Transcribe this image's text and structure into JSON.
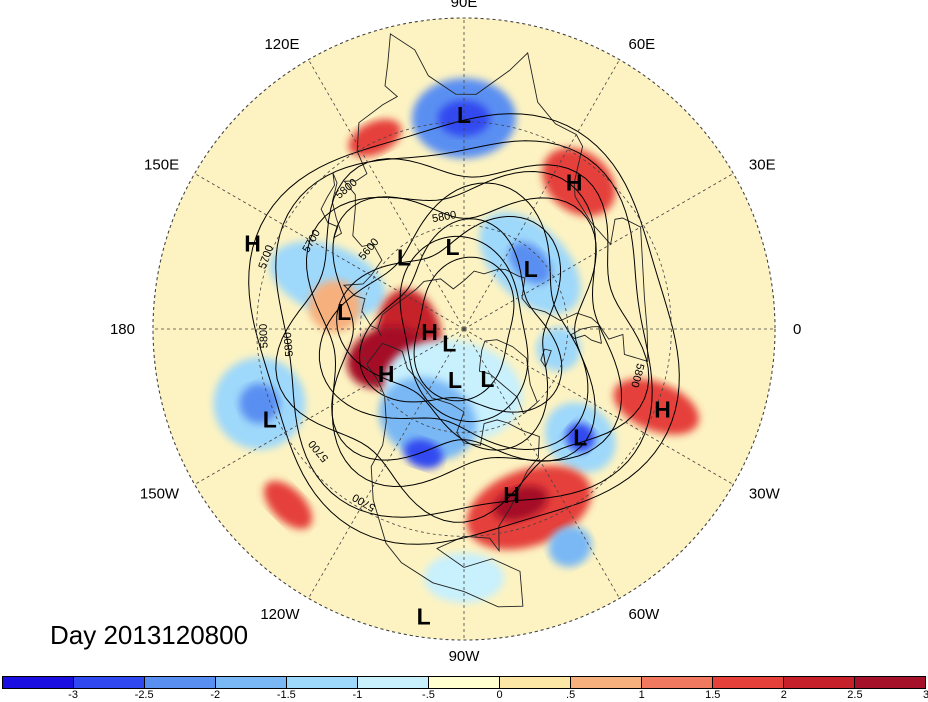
{
  "title": "Day 2013120800",
  "longitude_labels": [
    {
      "text": "90E",
      "deg": 90
    },
    {
      "text": "60E",
      "deg": 60
    },
    {
      "text": "30E",
      "deg": 30
    },
    {
      "text": "0",
      "deg": 0
    },
    {
      "text": "30W",
      "deg": -30
    },
    {
      "text": "60W",
      "deg": -60
    },
    {
      "text": "90W",
      "deg": -90
    },
    {
      "text": "120W",
      "deg": -120
    },
    {
      "text": "150W",
      "deg": -150
    },
    {
      "text": "180",
      "deg": 180
    },
    {
      "text": "150E",
      "deg": 150
    },
    {
      "text": "120E",
      "deg": 120
    }
  ],
  "pressure_centers": [
    {
      "type": "L",
      "label": "L",
      "lon": 90,
      "lat": 28
    },
    {
      "type": "H",
      "label": "H",
      "lon": 53,
      "lat": 37
    },
    {
      "type": "H",
      "label": "H",
      "lon": 158,
      "lat": 24
    },
    {
      "type": "L",
      "label": "L",
      "lon": 98,
      "lat": 66
    },
    {
      "type": "L",
      "label": "L",
      "lon": 130,
      "lat": 63
    },
    {
      "type": "L",
      "label": "L",
      "lon": 42,
      "lat": 64
    },
    {
      "type": "H",
      "label": "H",
      "lon": -175,
      "lat": 80
    },
    {
      "type": "L",
      "label": "L",
      "lon": -135,
      "lat": 84
    },
    {
      "type": "L",
      "label": "L",
      "lon": 172,
      "lat": 55
    },
    {
      "type": "H",
      "label": "H",
      "lon": -150,
      "lat": 64
    },
    {
      "type": "L",
      "label": "L",
      "lon": -100,
      "lat": 75
    },
    {
      "type": "L",
      "label": "L",
      "lon": -65,
      "lat": 74
    },
    {
      "type": "L",
      "label": "L",
      "lon": -155,
      "lat": 28
    },
    {
      "type": "L",
      "label": "L",
      "lon": -43,
      "lat": 44
    },
    {
      "type": "H",
      "label": "H",
      "lon": -22,
      "lat": 28
    },
    {
      "type": "H",
      "label": "H",
      "lon": -74,
      "lat": 40
    },
    {
      "type": "L",
      "label": "L",
      "lon": -98,
      "lat": 6
    }
  ],
  "contour_labels": [
    "5700",
    "5800",
    "5800",
    "5800",
    "5700",
    "5800",
    "5700",
    "5700",
    "5600",
    "5800"
  ],
  "anomaly_blobs": [
    {
      "lon": 90,
      "lat": 29,
      "rx": 52,
      "ry": 40,
      "level": -2.5
    },
    {
      "lon": 90,
      "lat": 29,
      "rx": 26,
      "ry": 18,
      "level": -3
    },
    {
      "lon": 52,
      "lat": 36,
      "rx": 40,
      "ry": 30,
      "level": 1.5
    },
    {
      "lon": 160,
      "lat": 48,
      "rx": 34,
      "ry": 60,
      "level": -1.5
    },
    {
      "lon": 45,
      "lat": 63,
      "rx": 62,
      "ry": 36,
      "level": -1.5
    },
    {
      "lon": 45,
      "lat": 63,
      "rx": 25,
      "ry": 16,
      "level": -2.5
    },
    {
      "lon": -172,
      "lat": 74,
      "rx": 48,
      "ry": 32,
      "level": 2
    },
    {
      "lon": -160,
      "lat": 66,
      "rx": 30,
      "ry": 40,
      "level": 3
    },
    {
      "lon": -100,
      "lat": 72,
      "rx": 70,
      "ry": 50,
      "level": -1
    },
    {
      "lon": -112,
      "lat": 62,
      "rx": 50,
      "ry": 40,
      "level": -2
    },
    {
      "lon": -108,
      "lat": 52,
      "rx": 20,
      "ry": 14,
      "level": -3
    },
    {
      "lon": -160,
      "lat": 27,
      "rx": 46,
      "ry": 46,
      "level": -1.5
    },
    {
      "lon": -160,
      "lat": 27,
      "rx": 20,
      "ry": 20,
      "level": -2.5
    },
    {
      "lon": -43,
      "lat": 44,
      "rx": 32,
      "ry": 38,
      "level": -1.5
    },
    {
      "lon": -43,
      "lat": 44,
      "rx": 14,
      "ry": 15,
      "level": -3
    },
    {
      "lon": -70,
      "lat": 35,
      "rx": 65,
      "ry": 38,
      "level": 1.5
    },
    {
      "lon": -72,
      "lat": 37,
      "rx": 28,
      "ry": 16,
      "level": 2.5
    },
    {
      "lon": -22,
      "lat": 30,
      "rx": 24,
      "ry": 45,
      "level": 1.5
    },
    {
      "lon": -90,
      "lat": 18,
      "rx": 40,
      "ry": 25,
      "level": -1
    },
    {
      "lon": -64,
      "lat": 20,
      "rx": 22,
      "ry": 20,
      "level": -2
    },
    {
      "lon": -135,
      "lat": 18,
      "rx": 30,
      "ry": 16,
      "level": 1.5
    },
    {
      "lon": 115,
      "lat": 29,
      "rx": 28,
      "ry": 16,
      "level": 1.5
    },
    {
      "lon": -12,
      "lat": 62,
      "rx": 22,
      "ry": 22,
      "level": -1.5
    },
    {
      "lon": 170,
      "lat": 52,
      "rx": 26,
      "ry": 26,
      "level": 0.7
    }
  ],
  "colorbar": {
    "colors": [
      "#1a0ee0",
      "#3048f0",
      "#5a8ff2",
      "#79b8f5",
      "#9ed8fa",
      "#c8f0fd",
      "#ffffd0",
      "#fde7a6",
      "#f6b07e",
      "#f0795f",
      "#e5403a",
      "#c6202b",
      "#a51128"
    ],
    "ticks": [
      "-3",
      "-2.5",
      "-2",
      "-1.5",
      "-1",
      "-.5",
      "0",
      ".5",
      "1",
      "1.5",
      "2",
      "2.5",
      "3"
    ]
  }
}
